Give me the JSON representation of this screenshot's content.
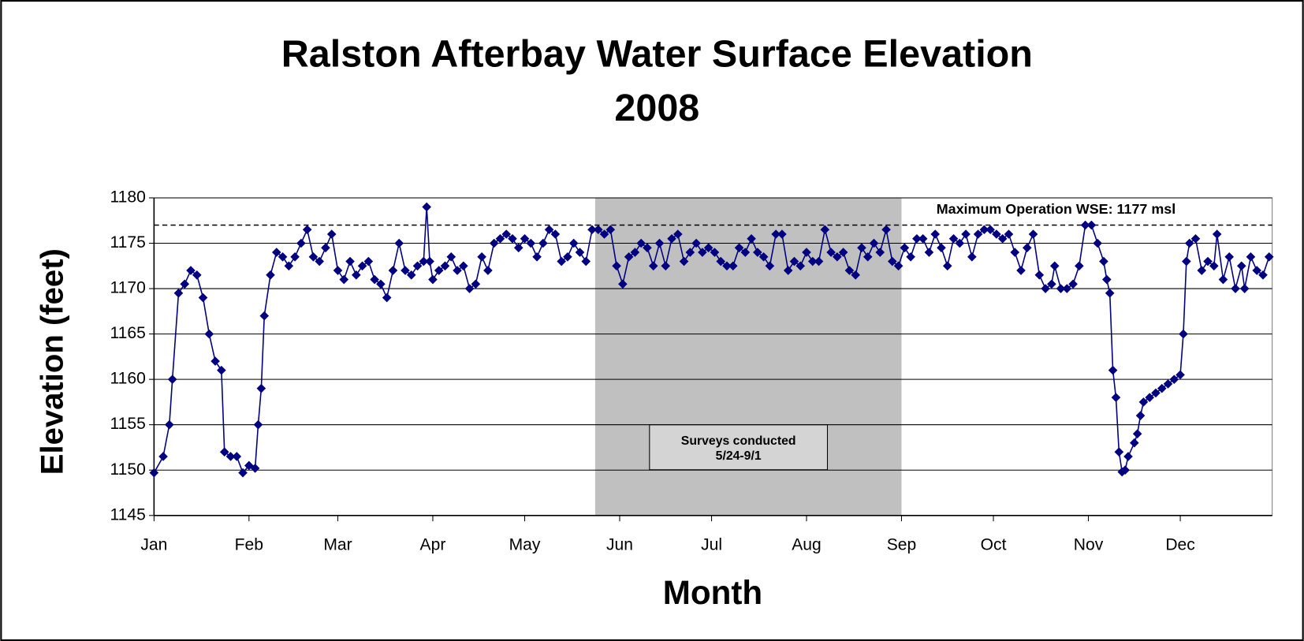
{
  "chart_data": {
    "type": "line",
    "title": "Ralston Afterbay Water Surface Elevation",
    "subtitle": "2008",
    "xlabel": "Month",
    "ylabel": "Elevation (feet)",
    "xlim": [
      0,
      365
    ],
    "xticks": [
      {
        "value": 0,
        "label": "Jan"
      },
      {
        "value": 31,
        "label": "Feb"
      },
      {
        "value": 60,
        "label": "Mar"
      },
      {
        "value": 91,
        "label": "Apr"
      },
      {
        "value": 121,
        "label": "May"
      },
      {
        "value": 152,
        "label": "Jun"
      },
      {
        "value": 182,
        "label": "Jul"
      },
      {
        "value": 213,
        "label": "Aug"
      },
      {
        "value": 244,
        "label": "Sep"
      },
      {
        "value": 274,
        "label": "Oct"
      },
      {
        "value": 305,
        "label": "Nov"
      },
      {
        "value": 335,
        "label": "Dec"
      }
    ],
    "ylim": [
      1145,
      1180
    ],
    "yticks": [
      1145,
      1150,
      1155,
      1160,
      1165,
      1170,
      1175,
      1180
    ],
    "grid": true,
    "shaded_range": [
      144,
      244
    ],
    "annotation": [
      "Surveys conducted",
      "5/24-9/1"
    ],
    "reference_line": {
      "value": 1177,
      "label": "Maximum Operation WSE: 1177 msl"
    },
    "series": [
      {
        "name": "Elevation",
        "color": "#000080",
        "x": [
          0,
          3,
          5,
          6,
          8,
          10,
          12,
          14,
          16,
          18,
          20,
          22,
          23,
          25,
          27,
          29,
          31,
          33,
          34,
          35,
          36,
          38,
          40,
          42,
          44,
          46,
          48,
          50,
          52,
          54,
          56,
          58,
          60,
          62,
          64,
          66,
          68,
          70,
          72,
          74,
          76,
          78,
          80,
          82,
          84,
          86,
          88,
          89,
          90,
          91,
          93,
          95,
          97,
          99,
          101,
          103,
          105,
          107,
          109,
          111,
          113,
          115,
          117,
          119,
          121,
          123,
          125,
          127,
          129,
          131,
          133,
          135,
          137,
          139,
          141,
          143,
          145,
          147,
          149,
          151,
          153,
          155,
          157,
          159,
          161,
          163,
          165,
          167,
          169,
          171,
          173,
          175,
          177,
          179,
          181,
          183,
          185,
          187,
          189,
          191,
          193,
          195,
          197,
          199,
          201,
          203,
          205,
          207,
          209,
          211,
          213,
          215,
          217,
          219,
          221,
          223,
          225,
          227,
          229,
          231,
          233,
          235,
          237,
          239,
          241,
          243,
          245,
          247,
          249,
          251,
          253,
          255,
          257,
          259,
          261,
          263,
          265,
          267,
          269,
          271,
          273,
          275,
          277,
          279,
          281,
          283,
          285,
          287,
          289,
          291,
          293,
          294,
          296,
          298,
          300,
          302,
          304,
          306,
          308,
          310,
          311,
          312,
          313,
          314,
          315,
          316,
          317,
          318,
          320,
          321,
          322,
          323,
          325,
          327,
          329,
          331,
          333,
          335,
          336,
          337,
          338,
          340,
          342,
          344,
          346,
          347,
          349,
          351,
          353,
          355,
          356,
          358,
          360,
          362,
          364
        ],
        "values": [
          1149.7,
          1151.5,
          1155,
          1160,
          1169.5,
          1170.5,
          1172,
          1171.5,
          1169,
          1165,
          1162,
          1161,
          1152,
          1151.5,
          1151.5,
          1149.7,
          1150.5,
          1150.2,
          1155,
          1159,
          1167,
          1171.5,
          1174,
          1173.5,
          1172.5,
          1173.5,
          1175,
          1176.5,
          1173.5,
          1173,
          1174.5,
          1176,
          1172,
          1171,
          1173,
          1171.5,
          1172.5,
          1173,
          1171,
          1170.5,
          1169,
          1172,
          1175,
          1172,
          1171.5,
          1172.5,
          1173,
          1179,
          1173,
          1171,
          1172,
          1172.5,
          1173.5,
          1172,
          1172.5,
          1170,
          1170.5,
          1173.5,
          1172,
          1175,
          1175.5,
          1176,
          1175.5,
          1174.5,
          1175.5,
          1175,
          1173.5,
          1175,
          1176.5,
          1176,
          1173,
          1173.5,
          1175,
          1174,
          1173,
          1176.5,
          1176.5,
          1176,
          1176.5,
          1172.5,
          1170.5,
          1173.5,
          1174,
          1175,
          1174.5,
          1172.5,
          1175,
          1172.5,
          1175.5,
          1176,
          1173,
          1174,
          1175,
          1174,
          1174.5,
          1174,
          1173,
          1172.5,
          1172.5,
          1174.5,
          1174,
          1175.5,
          1174,
          1173.5,
          1172.5,
          1176,
          1176,
          1172,
          1173,
          1172.5,
          1174,
          1173,
          1173,
          1176.5,
          1174,
          1173.5,
          1174,
          1172,
          1171.5,
          1174.5,
          1173.5,
          1175,
          1174,
          1176.5,
          1173,
          1172.5,
          1174.5,
          1173.5,
          1175.5,
          1175.5,
          1174,
          1176,
          1174.5,
          1172.5,
          1175.5,
          1175,
          1176,
          1173.5,
          1176,
          1176.5,
          1176.5,
          1176,
          1175.5,
          1176,
          1174,
          1172,
          1174.5,
          1176,
          1171.5,
          1170,
          1170.5,
          1172.5,
          1170,
          1170,
          1170.5,
          1172.5,
          1177,
          1177,
          1175,
          1173,
          1171,
          1169.5,
          1161,
          1158,
          1152,
          1149.8,
          1150,
          1151.5,
          1153,
          1154,
          1156,
          1157.5,
          1158,
          1158.5,
          1159,
          1159.5,
          1160,
          1160.5,
          1165,
          1173,
          1175,
          1175.5,
          1172,
          1173,
          1172.5,
          1176,
          1171,
          1173.5,
          1170,
          1172.5,
          1170,
          1173.5,
          1172,
          1171.5,
          1173.5
        ]
      }
    ]
  }
}
